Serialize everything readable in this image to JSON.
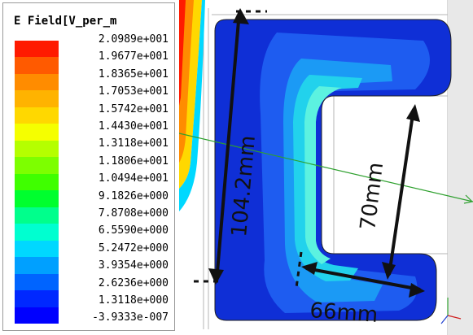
{
  "legend": {
    "title": "E Field[V_per_m",
    "values": [
      "2.0989e+001",
      "1.9677e+001",
      "1.8365e+001",
      "1.7053e+001",
      "1.5742e+001",
      "1.4430e+001",
      "1.3118e+001",
      "1.1806e+001",
      "1.0494e+001",
      "9.1826e+000",
      "7.8708e+000",
      "6.5590e+000",
      "5.2472e+000",
      "3.9354e+000",
      "2.6236e+000",
      "1.3118e+000",
      "-3.9333e-007"
    ],
    "colors": [
      "#ff1a00",
      "#ff5a00",
      "#ff8c00",
      "#ffb300",
      "#ffd800",
      "#f5ff00",
      "#b5ff00",
      "#7dff00",
      "#3fff00",
      "#00ff2e",
      "#00ff8c",
      "#00ffd0",
      "#00d8ff",
      "#00a0ff",
      "#0064ff",
      "#0028ff",
      "#0000ff"
    ]
  },
  "dimensions": {
    "height_label": "104.2mm",
    "gap_label": "70mm",
    "width_label": "66mm"
  }
}
